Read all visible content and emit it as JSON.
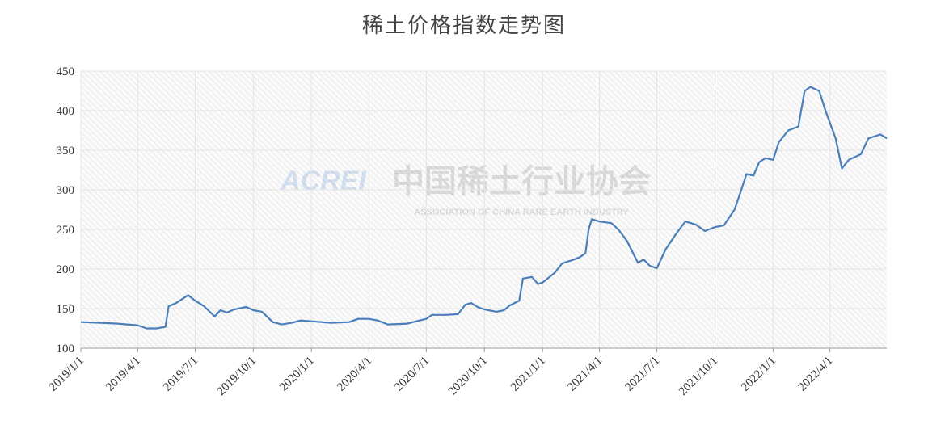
{
  "chart_data": {
    "type": "line",
    "title": "稀土价格指数走势图",
    "watermark": [
      "ACREI",
      "中国稀土行业协会",
      "ASSOCIATION OF CHINA RARE EARTH INDUSTRY"
    ],
    "x": [
      "2019/1/1",
      "2019/2/1",
      "2019/3/1",
      "2019/3/15",
      "2019/4/1",
      "2019/4/15",
      "2019/5/1",
      "2019/5/15",
      "2019/5/20",
      "2019/6/1",
      "2019/6/20",
      "2019/7/1",
      "2019/7/15",
      "2019/8/1",
      "2019/8/10",
      "2019/8/20",
      "2019/9/1",
      "2019/9/20",
      "2019/10/1",
      "2019/10/15",
      "2019/11/1",
      "2019/11/15",
      "2019/12/1",
      "2019/12/15",
      "2020/1/1",
      "2020/2/1",
      "2020/3/1",
      "2020/3/15",
      "2020/4/1",
      "2020/4/15",
      "2020/5/1",
      "2020/6/1",
      "2020/6/15",
      "2020/7/1",
      "2020/7/10",
      "2020/8/1",
      "2020/8/20",
      "2020/9/1",
      "2020/9/10",
      "2020/9/20",
      "2020/10/1",
      "2020/10/20",
      "2020/11/1",
      "2020/11/10",
      "2020/11/25",
      "2020/12/1",
      "2020/12/15",
      "2020/12/25",
      "2021/1/1",
      "2021/1/20",
      "2021/2/1",
      "2021/2/20",
      "2021/3/1",
      "2021/3/10",
      "2021/3/15",
      "2021/3/20",
      "2021/4/1",
      "2021/4/20",
      "2021/5/1",
      "2021/5/15",
      "2021/6/1",
      "2021/6/10",
      "2021/6/20",
      "2021/7/1",
      "2021/7/15",
      "2021/8/1",
      "2021/8/15",
      "2021/9/1",
      "2021/9/15",
      "2021/10/1",
      "2021/10/15",
      "2021/11/1",
      "2021/11/10",
      "2021/11/20",
      "2021/12/1",
      "2021/12/10",
      "2021/12/20",
      "2022/1/1",
      "2022/1/10",
      "2022/1/25",
      "2022/2/10",
      "2022/2/20",
      "2022/3/1",
      "2022/3/15",
      "2022/3/25",
      "2022/4/10",
      "2022/4/20",
      "2022/5/1",
      "2022/5/20",
      "2022/6/1",
      "2022/6/20",
      "2022/6/30"
    ],
    "series": [
      {
        "color": "#4a7ebb",
        "values": [
          133,
          132,
          131,
          130,
          129,
          125,
          125,
          127,
          153,
          157,
          167,
          160,
          153,
          140,
          148,
          145,
          149,
          152,
          148,
          146,
          133,
          130,
          132,
          135,
          134,
          132,
          133,
          137,
          137,
          135,
          130,
          131,
          134,
          137,
          142,
          142,
          143,
          155,
          157,
          152,
          149,
          146,
          148,
          154,
          160,
          188,
          190,
          181,
          183,
          195,
          207,
          212,
          215,
          220,
          250,
          263,
          260,
          258,
          250,
          235,
          208,
          212,
          204,
          201,
          225,
          245,
          260,
          256,
          248,
          253,
          255,
          275,
          296,
          320,
          318,
          335,
          340,
          338,
          360,
          375,
          380,
          425,
          430,
          425,
          400,
          365,
          327,
          338,
          345,
          365,
          370,
          365
        ]
      }
    ],
    "xlim": [
      "2019/1/1",
      "2022/6/30"
    ],
    "xticks": [
      "2019/1/1",
      "2019/4/1",
      "2019/7/1",
      "2019/10/1",
      "2020/1/1",
      "2020/4/1",
      "2020/7/1",
      "2020/10/1",
      "2021/1/1",
      "2021/4/1",
      "2021/7/1",
      "2021/10/1",
      "2022/1/1",
      "2022/4/1"
    ],
    "ylim": [
      100,
      450
    ],
    "yticks": [
      100,
      150,
      200,
      250,
      300,
      350,
      400,
      450
    ],
    "grid": true
  }
}
